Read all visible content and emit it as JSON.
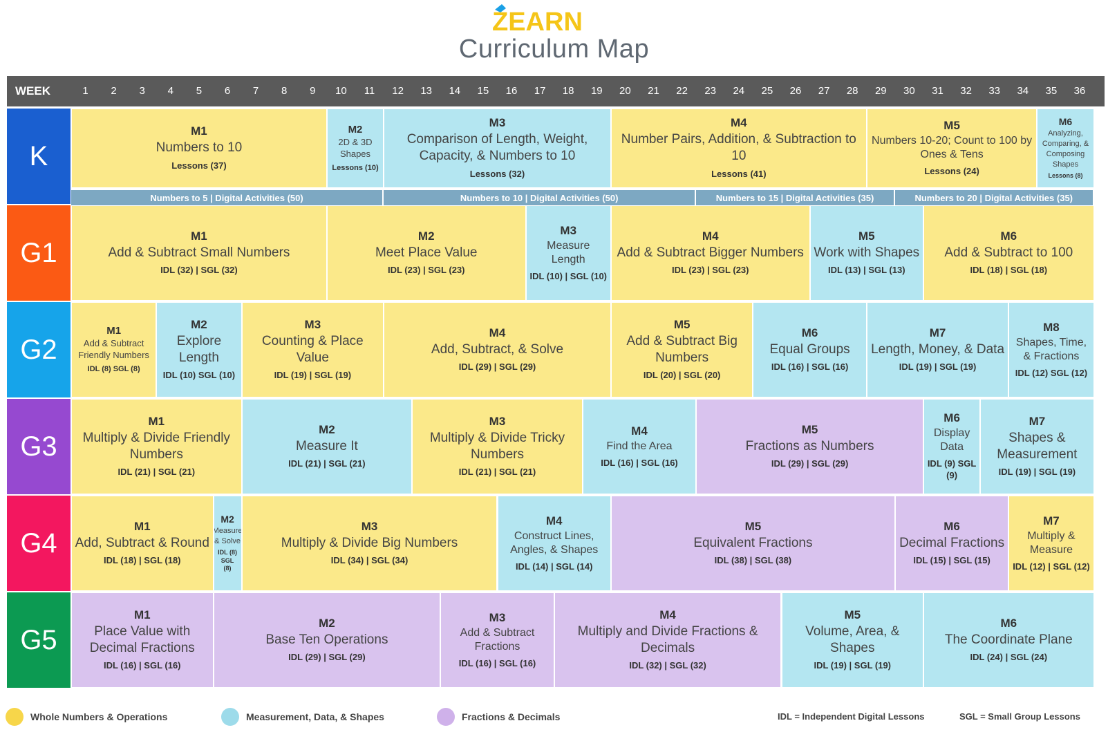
{
  "header": {
    "logo_text": "ZEARN",
    "title": "Curriculum Map"
  },
  "colors": {
    "whole_numbers": "#fbe98a",
    "measurement": "#b4e6f1",
    "fractions": "#d9c3ee",
    "K": "#1a5fd0",
    "G1": "#fb5a14",
    "G2": "#16a4ea",
    "G3": "#9649d0",
    "G4": "#f3175f",
    "G5": "#0c9a52"
  },
  "week_label": "WEEK",
  "weeks": [
    "1",
    "2",
    "3",
    "4",
    "5",
    "6",
    "7",
    "8",
    "9",
    "10",
    "11",
    "12",
    "13",
    "14",
    "15",
    "16",
    "17",
    "18",
    "19",
    "20",
    "21",
    "22",
    "23",
    "24",
    "25",
    "26",
    "27",
    "28",
    "29",
    "30",
    "31",
    "32",
    "33",
    "34",
    "35",
    "36"
  ],
  "grades": [
    {
      "label": "K",
      "color": "#1a5fd0",
      "modules": [
        {
          "code": "M1",
          "title": "Numbers to 10",
          "foot": "Lessons (37)",
          "cat": "y",
          "start": 1,
          "end": 9
        },
        {
          "code": "M2",
          "title": "2D & 3D Shapes",
          "foot": "Lessons (10)",
          "cat": "b",
          "start": 10,
          "end": 11,
          "size": "small"
        },
        {
          "code": "M3",
          "title": "Comparison of Length, Weight, Capacity, & Numbers to 10",
          "foot": "Lessons (32)",
          "cat": "b",
          "start": 12,
          "end": 19
        },
        {
          "code": "M4",
          "title": "Number Pairs, Addition, & Subtraction to 10",
          "foot": "Lessons (41)",
          "cat": "y",
          "start": 20,
          "end": 28
        },
        {
          "code": "M5",
          "title": "Numbers 10-20; Count to 100 by Ones & Tens",
          "foot": "Lessons (24)",
          "cat": "y",
          "start": 29,
          "end": 34,
          "size": "mid"
        },
        {
          "code": "M6",
          "title": "Analyzing, Comparing, & Composing Shapes",
          "foot": "Lessons (8)",
          "cat": "b",
          "start": 35,
          "end": 36,
          "size": "tiny"
        }
      ],
      "digital": [
        {
          "label": "Numbers to 5 | Digital Activities (50)",
          "start": 1,
          "end": 11
        },
        {
          "label": "Numbers to 10 | Digital Activities (50)",
          "start": 12,
          "end": 22
        },
        {
          "label": "Numbers to 15 | Digital Activities (35)",
          "start": 23,
          "end": 29
        },
        {
          "label": "Numbers to 20 | Digital Activities (35)",
          "start": 30,
          "end": 36
        }
      ]
    },
    {
      "label": "G1",
      "color": "#fb5a14",
      "modules": [
        {
          "code": "M1",
          "title": "Add & Subtract Small Numbers",
          "foot": "IDL (32) | SGL (32)",
          "cat": "y",
          "start": 1,
          "end": 9
        },
        {
          "code": "M2",
          "title": "Meet Place Value",
          "foot": "IDL (23) | SGL (23)",
          "cat": "y",
          "start": 10,
          "end": 16
        },
        {
          "code": "M3",
          "title": "Measure Length",
          "foot": "IDL (10) | SGL (10)",
          "cat": "b",
          "start": 17,
          "end": 19,
          "size": "mid"
        },
        {
          "code": "M4",
          "title": "Add & Subtract Bigger Numbers",
          "foot": "IDL (23) | SGL (23)",
          "cat": "y",
          "start": 20,
          "end": 26
        },
        {
          "code": "M5",
          "title": "Work with Shapes",
          "foot": "IDL (13) | SGL (13)",
          "cat": "b",
          "start": 27,
          "end": 30
        },
        {
          "code": "M6",
          "title": "Add & Subtract to 100",
          "foot": "IDL (18) | SGL (18)",
          "cat": "y",
          "start": 31,
          "end": 36
        }
      ]
    },
    {
      "label": "G2",
      "color": "#16a4ea",
      "modules": [
        {
          "code": "M1",
          "title": "Add & Subtract Friendly Numbers",
          "foot": "IDL (8) SGL (8)",
          "cat": "y",
          "start": 1,
          "end": 3,
          "size": "small"
        },
        {
          "code": "M2",
          "title": "Explore Length",
          "foot": "IDL (10) SGL (10)",
          "cat": "b",
          "start": 4,
          "end": 6
        },
        {
          "code": "M3",
          "title": "Counting & Place Value",
          "foot": "IDL (19) | SGL (19)",
          "cat": "y",
          "start": 7,
          "end": 11
        },
        {
          "code": "M4",
          "title": "Add, Subtract, & Solve",
          "foot": "IDL (29) | SGL (29)",
          "cat": "y",
          "start": 12,
          "end": 19
        },
        {
          "code": "M5",
          "title": "Add & Subtract Big Numbers",
          "foot": "IDL (20) | SGL (20)",
          "cat": "y",
          "start": 20,
          "end": 24
        },
        {
          "code": "M6",
          "title": "Equal Groups",
          "foot": "IDL (16) | SGL (16)",
          "cat": "b",
          "start": 25,
          "end": 28
        },
        {
          "code": "M7",
          "title": "Length, Money, & Data",
          "foot": "IDL (19) | SGL (19)",
          "cat": "b",
          "start": 29,
          "end": 33
        },
        {
          "code": "M8",
          "title": "Shapes, Time, & Fractions",
          "foot": "IDL (12) SGL (12)",
          "cat": "b",
          "start": 34,
          "end": 36,
          "size": "mid"
        }
      ]
    },
    {
      "label": "G3",
      "color": "#9649d0",
      "modules": [
        {
          "code": "M1",
          "title": "Multiply & Divide Friendly Numbers",
          "foot": "IDL (21) | SGL (21)",
          "cat": "y",
          "start": 1,
          "end": 6
        },
        {
          "code": "M2",
          "title": "Measure It",
          "foot": "IDL (21) | SGL (21)",
          "cat": "b",
          "start": 7,
          "end": 12
        },
        {
          "code": "M3",
          "title": "Multiply & Divide Tricky Numbers",
          "foot": "IDL (21) | SGL (21)",
          "cat": "y",
          "start": 13,
          "end": 18
        },
        {
          "code": "M4",
          "title": "Find the Area",
          "foot": "IDL (16) | SGL (16)",
          "cat": "b",
          "start": 19,
          "end": 22,
          "size": "mid"
        },
        {
          "code": "M5",
          "title": "Fractions as Numbers",
          "foot": "IDL (29) | SGL (29)",
          "cat": "p",
          "start": 23,
          "end": 30
        },
        {
          "code": "M6",
          "title": "Display Data",
          "foot": "IDL (9) SGL (9)",
          "cat": "b",
          "start": 31,
          "end": 32,
          "size": "mid"
        },
        {
          "code": "M7",
          "title": "Shapes & Measurement",
          "foot": "IDL (19) | SGL (19)",
          "cat": "b",
          "start": 33,
          "end": 36
        }
      ]
    },
    {
      "label": "G4",
      "color": "#f3175f",
      "modules": [
        {
          "code": "M1",
          "title": "Add, Subtract & Round",
          "foot": "IDL (18) | SGL (18)",
          "cat": "y",
          "start": 1,
          "end": 5
        },
        {
          "code": "M2",
          "title": "Measure & Solve",
          "foot": "IDL (8) SGL (8)",
          "cat": "b",
          "start": 6,
          "end": 6,
          "size": "tiny"
        },
        {
          "code": "M3",
          "title": "Multiply & Divide Big Numbers",
          "foot": "IDL (34) | SGL (34)",
          "cat": "y",
          "start": 7,
          "end": 15
        },
        {
          "code": "M4",
          "title": "Construct Lines, Angles, & Shapes",
          "foot": "IDL (14) | SGL (14)",
          "cat": "b",
          "start": 16,
          "end": 19,
          "size": "mid"
        },
        {
          "code": "M5",
          "title": "Equivalent Fractions",
          "foot": "IDL (38) | SGL (38)",
          "cat": "p",
          "start": 20,
          "end": 29
        },
        {
          "code": "M6",
          "title": "Decimal Fractions",
          "foot": "IDL (15) | SGL (15)",
          "cat": "p",
          "start": 30,
          "end": 33
        },
        {
          "code": "M7",
          "title": "Multiply & Measure",
          "foot": "IDL (12) | SGL (12)",
          "cat": "y",
          "start": 34,
          "end": 36,
          "size": "mid"
        }
      ]
    },
    {
      "label": "G5",
      "color": "#0c9a52",
      "modules": [
        {
          "code": "M1",
          "title": "Place Value with Decimal Fractions",
          "foot": "IDL (16) | SGL (16)",
          "cat": "p",
          "start": 1,
          "end": 5
        },
        {
          "code": "M2",
          "title": "Base Ten Operations",
          "foot": "IDL (29) | SGL (29)",
          "cat": "p",
          "start": 6,
          "end": 13
        },
        {
          "code": "M3",
          "title": "Add & Subtract Fractions",
          "foot": "IDL (16) | SGL (16)",
          "cat": "p",
          "start": 14,
          "end": 17,
          "size": "mid"
        },
        {
          "code": "M4",
          "title": "Multiply and Divide Fractions & Decimals",
          "foot": "IDL (32) | SGL (32)",
          "cat": "p",
          "start": 18,
          "end": 25
        },
        {
          "code": "M5",
          "title": "Volume, Area, & Shapes",
          "foot": "IDL (19) | SGL (19)",
          "cat": "b",
          "start": 26,
          "end": 30
        },
        {
          "code": "M6",
          "title": "The Coordinate Plane",
          "foot": "IDL (24) | SGL (24)",
          "cat": "b",
          "start": 31,
          "end": 36
        }
      ]
    }
  ],
  "legend": {
    "whole": "Whole Numbers & Operations",
    "measurement": "Measurement, Data, & Shapes",
    "fractions": "Fractions & Decimals",
    "idl_note": "IDL = Independent Digital Lessons",
    "sgl_note": "SGL = Small Group Lessons"
  }
}
